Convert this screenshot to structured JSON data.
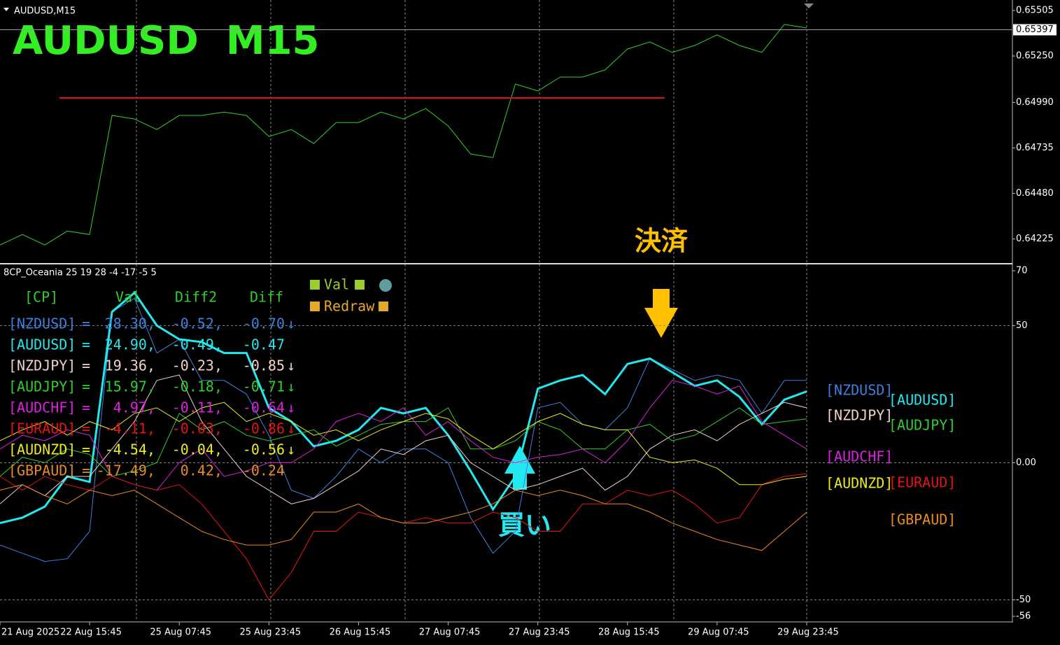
{
  "header": "AUDUSD,M15",
  "chart_data": [
    {
      "type": "line",
      "title": "AUDUSD  M15",
      "color": "#33cc33",
      "values": [
        0.64191,
        0.6425,
        0.64191,
        0.64269,
        0.6425,
        0.64917,
        0.64897,
        0.64838,
        0.64917,
        0.64917,
        0.64936,
        0.64917,
        0.64799,
        0.64838,
        0.6476,
        0.64877,
        0.64877,
        0.64936,
        0.64897,
        0.64956,
        0.64858,
        0.64701,
        0.64681,
        0.65093,
        0.65054,
        0.65132,
        0.65132,
        0.65172,
        0.65289,
        0.65329,
        0.6527,
        0.65309,
        0.65368,
        0.65309,
        0.6527,
        0.65427,
        0.65407
      ],
      "ylim": [
        0.64094,
        0.65548
      ],
      "yticks": [
        0.65505,
        {
          "value": 0.6525,
          "label": "0.65250"
        },
        {
          "value": 0.6499,
          "label": "0.64990"
        },
        0.64735,
        {
          "value": 0.6448,
          "label": "0.64480"
        },
        0.64225
      ],
      "current_price": 0.65397,
      "level": {
        "value": 0.65015,
        "color": "#dd1111"
      }
    },
    {
      "type": "line",
      "title": "8CP_Oceania 25 19 28 -4 -17 -5 5",
      "categories": [
        "21 Aug 2025",
        null,
        null,
        null,
        "22 Aug 15:45",
        null,
        null,
        null,
        "25 Aug 07:45",
        null,
        null,
        null,
        "25 Aug 23:45",
        null,
        null,
        null,
        "26 Aug 15:45",
        null,
        null,
        null,
        "27 Aug 07:45",
        null,
        null,
        null,
        "27 Aug 23:45",
        null,
        null,
        null,
        "28 Aug 15:45",
        null,
        null,
        null,
        "29 Aug 07:45",
        null,
        null,
        null,
        "29 Aug 23:45"
      ],
      "ylim": [
        -56,
        70
      ],
      "yticks": [
        70,
        50,
        {
          "value": 0,
          "label": "0.00"
        },
        -50,
        -56
      ],
      "grid": true,
      "series": [
        {
          "name": "[NZDUSD]",
          "color": "#3f7fe0",
          "values": [
            -30,
            -33,
            -36,
            -35,
            -25,
            55,
            60,
            40,
            45,
            30,
            30,
            25,
            10,
            -10,
            -13,
            -5,
            5,
            0,
            5,
            5,
            0,
            -20,
            -33,
            -25,
            20,
            22,
            14,
            12,
            20,
            38,
            34,
            30,
            32,
            30,
            18,
            30,
            30
          ]
        },
        {
          "name": "[AUDUSD]",
          "color": "#22e8f0",
          "values": [
            -22,
            -20,
            -16,
            -5,
            -7,
            55,
            62,
            50,
            45,
            44,
            40,
            40,
            20,
            15,
            6,
            8,
            12,
            20,
            18,
            20,
            10,
            -3,
            -17,
            -5,
            27,
            30,
            32,
            25,
            36,
            38,
            33,
            28,
            30,
            24,
            14,
            23,
            26
          ]
        },
        {
          "name": "[NZDJPY]",
          "color": "#f2d2c8",
          "values": [
            -15,
            -8,
            -12,
            -5,
            -5,
            5,
            15,
            30,
            32,
            15,
            5,
            -5,
            -10,
            -15,
            -13,
            -8,
            -3,
            5,
            3,
            8,
            10,
            0,
            -5,
            -10,
            -8,
            -5,
            -2,
            -10,
            -5,
            5,
            10,
            12,
            8,
            14,
            18,
            22,
            20
          ]
        },
        {
          "name": "[AUDJPY]",
          "color": "#33cc33",
          "values": [
            -5,
            2,
            0,
            5,
            3,
            -5,
            -3,
            0,
            18,
            12,
            15,
            10,
            8,
            10,
            12,
            6,
            10,
            14,
            15,
            15,
            20,
            5,
            5,
            8,
            15,
            12,
            5,
            5,
            12,
            14,
            8,
            10,
            15,
            20,
            14,
            15,
            16
          ]
        },
        {
          "name": "[AUDCHF]",
          "color": "#e020e0",
          "values": [
            5,
            10,
            8,
            12,
            10,
            -5,
            -8,
            -10,
            0,
            5,
            -5,
            -3,
            0,
            0,
            5,
            15,
            18,
            15,
            20,
            10,
            15,
            8,
            2,
            0,
            2,
            3,
            5,
            0,
            8,
            20,
            30,
            28,
            25,
            28,
            15,
            10,
            5
          ]
        },
        {
          "name": "[EURAUD]",
          "color": "#e41414",
          "values": [
            -5,
            -10,
            -5,
            -8,
            -10,
            -5,
            -8,
            -10,
            -8,
            -15,
            -25,
            -35,
            -50,
            -40,
            -25,
            -25,
            -18,
            -20,
            -22,
            -20,
            -22,
            -22,
            -18,
            -20,
            -25,
            -25,
            -15,
            -15,
            -10,
            -12,
            -10,
            -15,
            -22,
            -20,
            -8,
            -5,
            -4
          ]
        },
        {
          "name": "[AUDNZD]",
          "color": "#ecec1a",
          "values": [
            8,
            12,
            15,
            10,
            15,
            12,
            18,
            20,
            15,
            20,
            22,
            15,
            18,
            15,
            10,
            12,
            8,
            12,
            15,
            18,
            16,
            10,
            5,
            10,
            15,
            18,
            14,
            12,
            12,
            2,
            0,
            1,
            -2,
            -8,
            -8,
            -6,
            -5
          ]
        },
        {
          "name": "[GBPAUD]",
          "color": "#e88c22",
          "values": [
            -10,
            -8,
            -12,
            -15,
            -10,
            -12,
            -10,
            -15,
            -20,
            -25,
            -28,
            -30,
            -30,
            -28,
            -18,
            -18,
            -15,
            -20,
            -22,
            -22,
            -20,
            -18,
            -15,
            -10,
            -12,
            -10,
            -12,
            -15,
            -15,
            -18,
            -22,
            -25,
            -28,
            -30,
            -32,
            -25,
            -18
          ]
        }
      ],
      "table": {
        "headers": [
          "[CP]",
          "Val",
          "Diff2",
          "Diff"
        ],
        "separator": "=",
        "rows": [
          {
            "val": "28.30,",
            "diff2": "-0.52,",
            "diff": "-0.70",
            "arrow": "↓"
          },
          {
            "val": "24.90,",
            "diff2": "-0.49,",
            "diff": "-0.47"
          },
          {
            "val": "19.36,",
            "diff2": "-0.23,",
            "diff": "-0.85",
            "arrow": "↓"
          },
          {
            "val": "15.97,",
            "diff2": "-0.18,",
            "diff": "-0.71",
            "arrow": "↓"
          },
          {
            "val": "4.97,",
            "diff2": "-0.11,",
            "diff": "-0.64",
            "arrow": "↓"
          },
          {
            "val": "-4.11,",
            "diff2": "-0.03,",
            "diff": "-0.86",
            "arrow": "↓"
          },
          {
            "val": "-4.54,",
            "diff2": "-0.04,",
            "diff": "-0.56",
            "arrow": "↓"
          },
          {
            "val": "-17.49,",
            "diff2": "0.42,",
            "diff": "-0.24"
          }
        ]
      },
      "buttons": [
        "Val",
        "Redraw"
      ],
      "annotations": [
        "決済",
        "買い"
      ]
    }
  ]
}
